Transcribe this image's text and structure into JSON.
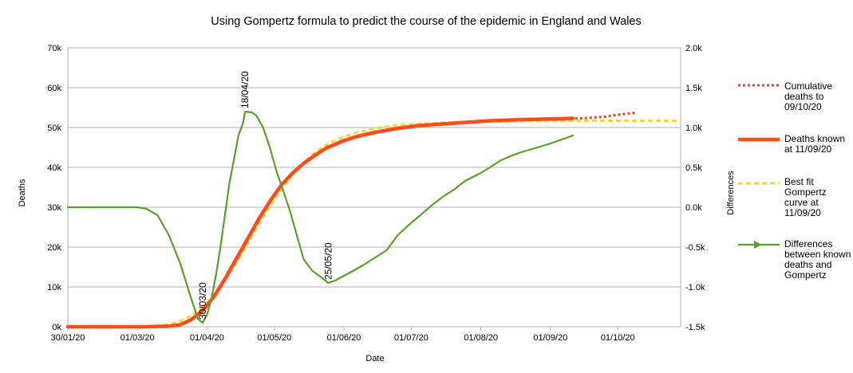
{
  "chart_data": {
    "type": "line",
    "title": "Using Gompertz formula to predict the course of the epidemic in England and Wales",
    "xlabel": "Date",
    "ylabel": "Deaths",
    "y2label": "Differences",
    "xlim": [
      "2020-01-30",
      "2020-10-29"
    ],
    "ylim": [
      0,
      70000
    ],
    "y2lim": [
      -1500,
      2000
    ],
    "grid": "horizontal",
    "legend_position": "right",
    "x_ticks": [
      "30/01/20",
      "01/03/20",
      "01/04/20",
      "01/05/20",
      "01/06/20",
      "01/07/20",
      "01/08/20",
      "01/09/20",
      "01/10/20"
    ],
    "x_tick_dates": [
      "2020-01-30",
      "2020-03-01",
      "2020-04-01",
      "2020-05-01",
      "2020-06-01",
      "2020-07-01",
      "2020-08-01",
      "2020-09-01",
      "2020-10-01"
    ],
    "y_ticks": [
      "0k",
      "10k",
      "20k",
      "30k",
      "40k",
      "50k",
      "60k",
      "70k"
    ],
    "y_tick_values": [
      0,
      10000,
      20000,
      30000,
      40000,
      50000,
      60000,
      70000
    ],
    "y2_ticks": [
      "-1.5k",
      "-1.0k",
      "-0.5k",
      "0.0k",
      "0.5k",
      "1.0k",
      "1.5k",
      "2.0k"
    ],
    "y2_tick_values": [
      -1500,
      -1000,
      -500,
      0,
      500,
      1000,
      1500,
      2000
    ],
    "series": [
      {
        "name": "Cumulative deaths to 09/10/20",
        "legend_lines": [
          "Cumulative",
          "deaths to",
          "09/10/20"
        ],
        "axis": "left",
        "color": "#ee4422",
        "style": "dotted",
        "x": [
          "2020-01-30",
          "2020-03-05",
          "2020-03-15",
          "2020-03-20",
          "2020-03-25",
          "2020-03-30",
          "2020-04-04",
          "2020-04-09",
          "2020-04-14",
          "2020-04-19",
          "2020-04-24",
          "2020-04-29",
          "2020-05-04",
          "2020-05-09",
          "2020-05-14",
          "2020-05-19",
          "2020-05-24",
          "2020-05-31",
          "2020-06-07",
          "2020-06-15",
          "2020-06-25",
          "2020-07-05",
          "2020-07-20",
          "2020-08-05",
          "2020-08-20",
          "2020-09-05",
          "2020-09-15",
          "2020-09-25",
          "2020-10-01",
          "2020-10-09"
        ],
        "y": [
          0,
          0,
          150,
          500,
          1800,
          4000,
          7500,
          12000,
          17000,
          22000,
          27000,
          31500,
          35500,
          38500,
          41000,
          43000,
          44800,
          46500,
          47800,
          48800,
          49800,
          50500,
          51100,
          51700,
          52000,
          52200,
          52300,
          52700,
          53200,
          53700
        ]
      },
      {
        "name": "Deaths known at 11/09/20",
        "legend_lines": [
          "Deaths known",
          "at 11/09/20"
        ],
        "axis": "left",
        "color": "#ff4d1a",
        "style": "solid",
        "x": [
          "2020-01-30",
          "2020-03-05",
          "2020-03-15",
          "2020-03-20",
          "2020-03-25",
          "2020-03-30",
          "2020-04-04",
          "2020-04-09",
          "2020-04-14",
          "2020-04-19",
          "2020-04-24",
          "2020-04-29",
          "2020-05-04",
          "2020-05-09",
          "2020-05-14",
          "2020-05-19",
          "2020-05-24",
          "2020-05-31",
          "2020-06-07",
          "2020-06-15",
          "2020-06-25",
          "2020-07-05",
          "2020-07-20",
          "2020-08-05",
          "2020-08-20",
          "2020-09-05",
          "2020-09-11"
        ],
        "y": [
          0,
          0,
          150,
          500,
          1800,
          4000,
          7500,
          12000,
          17000,
          22000,
          27000,
          31500,
          35500,
          38500,
          41000,
          43000,
          44800,
          46500,
          47800,
          48800,
          49800,
          50500,
          51100,
          51700,
          52000,
          52200,
          52300
        ]
      },
      {
        "name": "Best fit Gompertz curve at 11/09/20",
        "legend_lines": [
          "Best fit",
          "Gompertz",
          "curve at",
          "11/09/20"
        ],
        "axis": "left",
        "color": "#ffd040",
        "style": "dashed",
        "x": [
          "2020-01-30",
          "2020-03-05",
          "2020-03-15",
          "2020-03-20",
          "2020-03-25",
          "2020-03-30",
          "2020-04-04",
          "2020-04-09",
          "2020-04-14",
          "2020-04-19",
          "2020-04-24",
          "2020-04-29",
          "2020-05-04",
          "2020-05-09",
          "2020-05-14",
          "2020-05-19",
          "2020-05-24",
          "2020-05-31",
          "2020-06-07",
          "2020-06-15",
          "2020-06-25",
          "2020-07-05",
          "2020-07-20",
          "2020-08-05",
          "2020-08-20",
          "2020-09-05",
          "2020-09-20",
          "2020-10-05",
          "2020-10-29"
        ],
        "y": [
          0,
          100,
          600,
          1400,
          2800,
          4900,
          7800,
          11500,
          16000,
          20800,
          25600,
          30200,
          34400,
          38100,
          41200,
          43700,
          45600,
          47500,
          48800,
          49800,
          50600,
          51000,
          51300,
          51500,
          51600,
          51650,
          51700,
          51700,
          51700
        ]
      },
      {
        "name": "Differences between known deaths and Gompertz",
        "legend_lines": [
          "Differences",
          "between known",
          "deaths and",
          "Gompertz"
        ],
        "axis": "right",
        "color": "#5aa02c",
        "style": "solid-arrow",
        "x": [
          "2020-01-30",
          "2020-03-01",
          "2020-03-05",
          "2020-03-10",
          "2020-03-15",
          "2020-03-20",
          "2020-03-25",
          "2020-03-28",
          "2020-03-30",
          "2020-04-01",
          "2020-04-03",
          "2020-04-05",
          "2020-04-07",
          "2020-04-09",
          "2020-04-11",
          "2020-04-13",
          "2020-04-15",
          "2020-04-17",
          "2020-04-18",
          "2020-04-21",
          "2020-04-23",
          "2020-04-26",
          "2020-04-29",
          "2020-05-02",
          "2020-05-05",
          "2020-05-08",
          "2020-05-11",
          "2020-05-14",
          "2020-05-18",
          "2020-05-22",
          "2020-05-25",
          "2020-05-28",
          "2020-06-01",
          "2020-06-05",
          "2020-06-10",
          "2020-06-15",
          "2020-06-20",
          "2020-06-25",
          "2020-06-30",
          "2020-07-05",
          "2020-07-10",
          "2020-07-15",
          "2020-07-20",
          "2020-07-25",
          "2020-08-01",
          "2020-08-05",
          "2020-08-10",
          "2020-08-15",
          "2020-08-20",
          "2020-08-25",
          "2020-09-01",
          "2020-09-05",
          "2020-09-11"
        ],
        "y": [
          0,
          0,
          -20,
          -100,
          -350,
          -700,
          -1150,
          -1400,
          -1450,
          -1350,
          -1150,
          -850,
          -500,
          -100,
          300,
          600,
          900,
          1050,
          1200,
          1190,
          1150,
          1000,
          750,
          450,
          200,
          -50,
          -350,
          -650,
          -800,
          -880,
          -950,
          -920,
          -860,
          -800,
          -720,
          -630,
          -540,
          -350,
          -220,
          -100,
          20,
          130,
          220,
          330,
          430,
          500,
          590,
          650,
          700,
          740,
          800,
          840,
          900
        ]
      }
    ],
    "annotations": [
      {
        "text": "30/03/20",
        "x": "2020-03-30",
        "series": "Differences between known deaths and Gompertz",
        "y": -1450
      },
      {
        "text": "18/04/20",
        "x": "2020-04-18",
        "series": "Differences between known deaths and Gompertz",
        "y": 1200
      },
      {
        "text": "25/05/20",
        "x": "2020-05-25",
        "series": "Differences between known deaths and Gompertz",
        "y": -950
      }
    ]
  }
}
